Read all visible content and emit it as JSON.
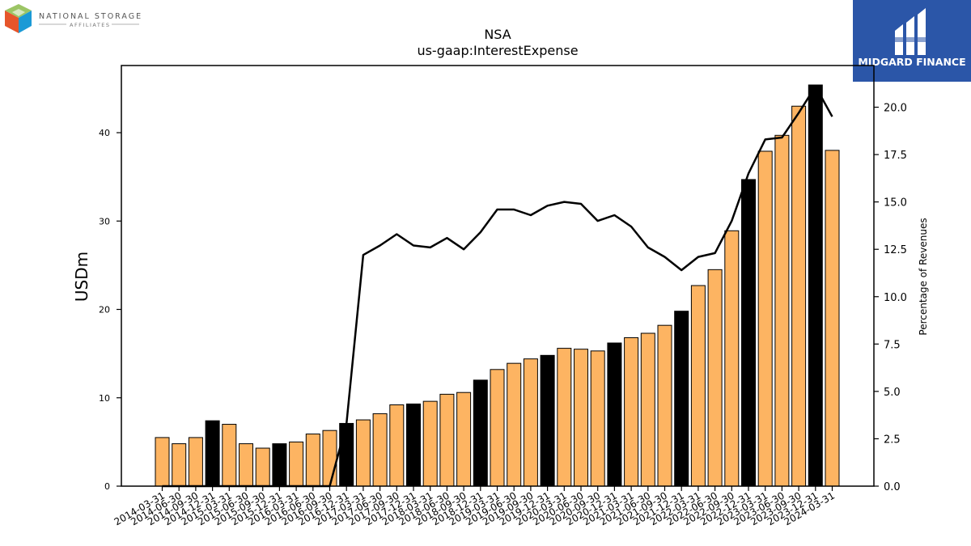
{
  "header": {
    "left_logo_text": "NATIONAL STORAGE",
    "left_logo_subtext": "AFFILIATES",
    "right_logo_text": "MIDGARD FINANCE"
  },
  "colors": {
    "bar_default": "#fdb462",
    "bar_highlight": "#000000",
    "line": "#000000",
    "brand_blue": "#2b56a8"
  },
  "chart_data": {
    "type": "bar",
    "title": "NSA",
    "subtitle": "us-gaap:InterestExpense",
    "ylabel": "USDm",
    "y2label": "Percentage of Revenues",
    "ylim": [
      0,
      47.6
    ],
    "y2lim": [
      0,
      22.2
    ],
    "yticks": [
      0,
      10,
      20,
      30,
      40
    ],
    "y2ticks": [
      "0.0",
      "2.5",
      "5.0",
      "7.5",
      "10.0",
      "12.5",
      "15.0",
      "17.5",
      "20.0"
    ],
    "categories": [
      "2014-03-31",
      "2014-06-30",
      "2014-09-30",
      "2014-12-31",
      "2015-03-31",
      "2015-06-30",
      "2015-09-30",
      "2015-12-31",
      "2016-03-31",
      "2016-06-30",
      "2016-09-30",
      "2016-12-31",
      "2017-03-31",
      "2017-06-30",
      "2017-09-30",
      "2017-12-31",
      "2018-03-31",
      "2018-06-30",
      "2018-09-30",
      "2018-12-31",
      "2019-03-31",
      "2019-06-30",
      "2019-09-30",
      "2019-12-31",
      "2020-03-31",
      "2020-06-30",
      "2020-09-30",
      "2020-12-31",
      "2021-03-31",
      "2021-06-30",
      "2021-09-30",
      "2021-12-31",
      "2022-03-31",
      "2022-06-30",
      "2022-09-30",
      "2022-12-31",
      "2023-03-31",
      "2023-06-30",
      "2023-09-30",
      "2023-12-31",
      "2024-03-31"
    ],
    "series": [
      {
        "type": "bar",
        "values": [
          5.5,
          4.8,
          5.5,
          7.4,
          7.0,
          4.8,
          4.3,
          4.8,
          5.0,
          5.9,
          6.3,
          7.1,
          7.5,
          8.2,
          9.2,
          9.3,
          9.6,
          10.4,
          10.6,
          12.0,
          13.2,
          13.9,
          14.4,
          14.8,
          15.6,
          15.5,
          15.3,
          16.2,
          16.8,
          17.3,
          18.2,
          19.8,
          22.7,
          24.5,
          28.9,
          34.7,
          37.9,
          39.7,
          43.0,
          45.4,
          38.0
        ],
        "highlight": [
          false,
          false,
          false,
          true,
          false,
          false,
          false,
          true,
          false,
          false,
          false,
          true,
          false,
          false,
          false,
          true,
          false,
          false,
          false,
          true,
          false,
          false,
          false,
          true,
          false,
          false,
          false,
          true,
          false,
          false,
          false,
          true,
          false,
          false,
          false,
          true,
          false,
          false,
          false,
          true,
          false
        ]
      },
      {
        "type": "line",
        "axis": "right",
        "values": [
          0,
          0,
          0,
          0,
          0,
          0,
          0,
          0,
          0,
          0,
          0,
          3.3,
          12.2,
          12.7,
          13.3,
          12.7,
          12.6,
          13.1,
          12.5,
          13.4,
          14.6,
          14.6,
          14.3,
          14.8,
          15.0,
          14.9,
          14.0,
          14.3,
          13.7,
          12.6,
          12.1,
          11.4,
          12.1,
          12.3,
          14.0,
          16.5,
          18.3,
          18.4,
          19.7,
          21.1,
          19.5
        ]
      }
    ],
    "grid": false,
    "legend": "none"
  }
}
